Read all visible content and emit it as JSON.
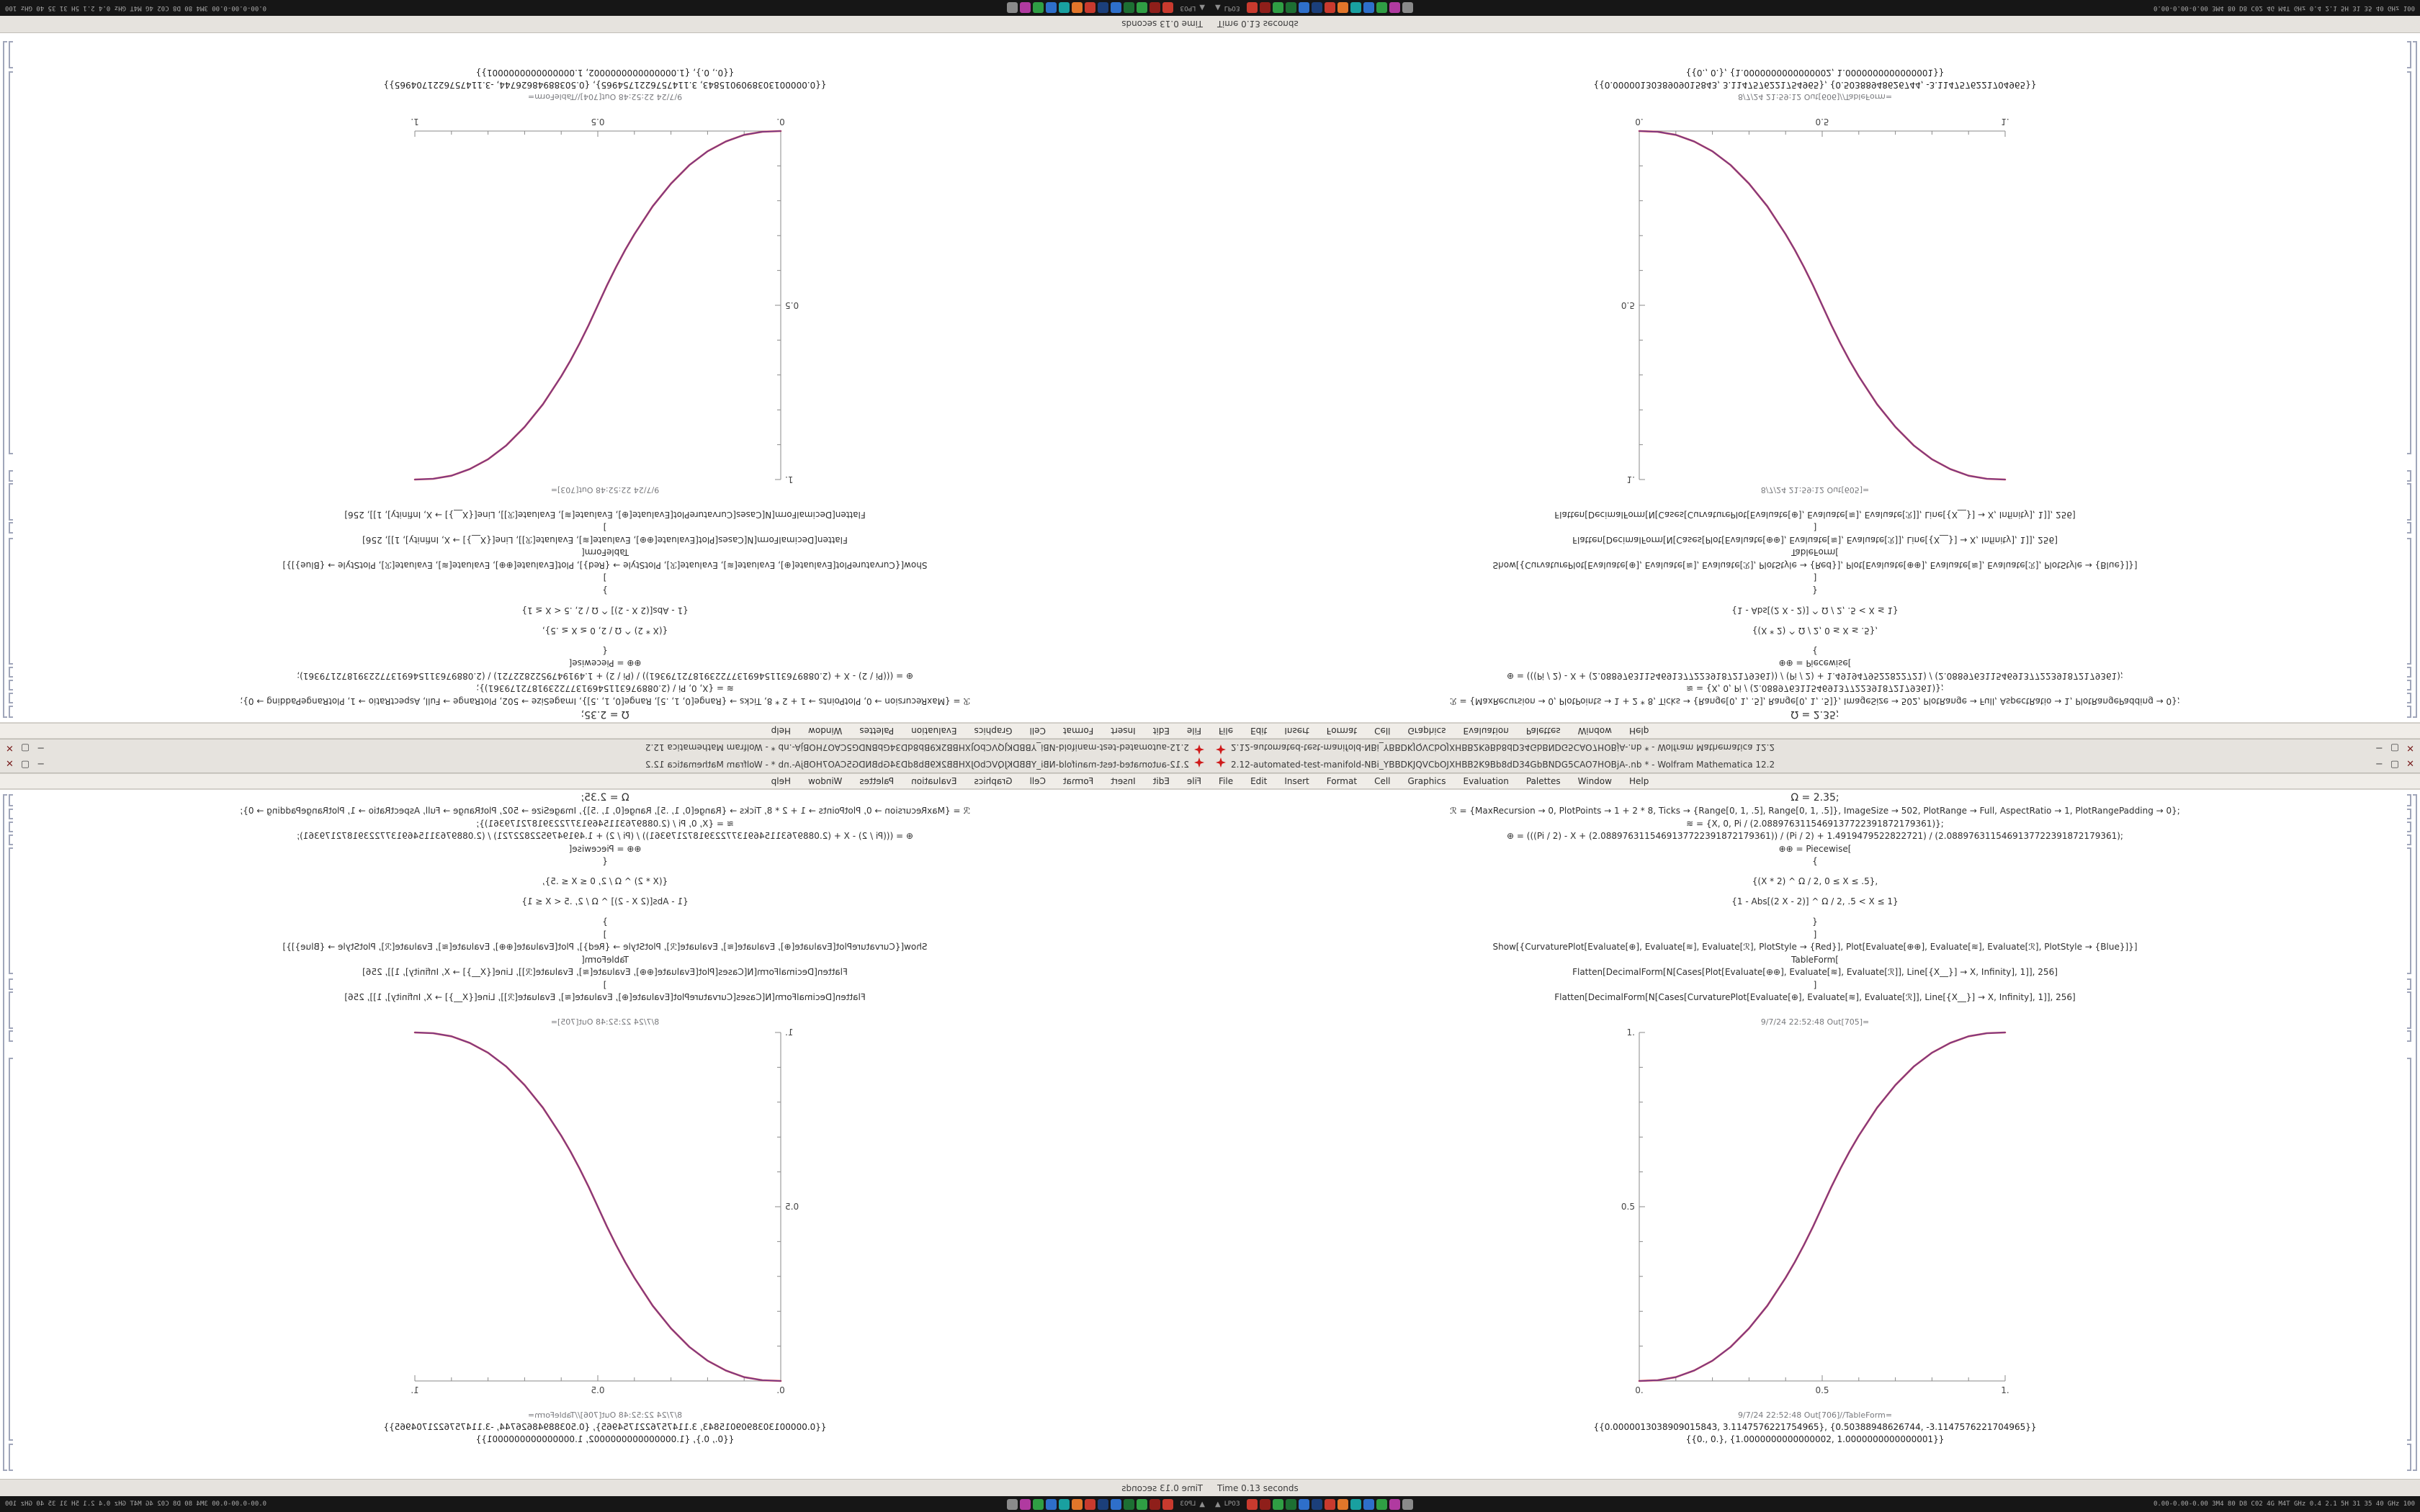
{
  "desktop": {
    "taskbar": {
      "hide_arrow": "▲",
      "left_label": "LP03",
      "right_label": "0.00-0.00-0.00 3M4 80 D8 C02 4G M4T GHz 0.4 2.1 5H 31 35 40 GHz 100",
      "tray_icons": [
        {
          "name": "tray-app-red",
          "color": "#c83a2e"
        },
        {
          "name": "tray-app-dark-red",
          "color": "#8f1f1a"
        },
        {
          "name": "tray-app-green",
          "color": "#2f9e44"
        },
        {
          "name": "tray-app-dark-green",
          "color": "#1d6f33"
        },
        {
          "name": "tray-app-blue",
          "color": "#2e6fca"
        },
        {
          "name": "tray-app-navy",
          "color": "#1b3f7a"
        },
        {
          "name": "tray-app-red-2",
          "color": "#c83a2e"
        },
        {
          "name": "tray-app-orange",
          "color": "#e2762a"
        },
        {
          "name": "tray-app-teal",
          "color": "#19a0a0"
        },
        {
          "name": "tray-app-blue-2",
          "color": "#2e6fca"
        },
        {
          "name": "tray-app-green-2",
          "color": "#2f9e44"
        },
        {
          "name": "tray-app-magenta",
          "color": "#b03aa0"
        },
        {
          "name": "tray-app-gray",
          "color": "#8a8a8a"
        }
      ]
    },
    "window": {
      "app_icon": "mathematica-spikey-icon",
      "app_icon_color": "#cf1a1a",
      "menu_items": [
        "File",
        "Edit",
        "Insert",
        "Format",
        "Cell",
        "Graphics",
        "Evaluation",
        "Palettes",
        "Window",
        "Help"
      ],
      "controls": [
        {
          "name": "minimize-button",
          "glyph": "−"
        },
        {
          "name": "maximize-button",
          "glyph": "▢"
        },
        {
          "name": "close-button",
          "glyph": "✕"
        }
      ]
    }
  },
  "notebook": {
    "input_cells": [
      "Ω = 2.35;",
      "ℛ = {MaxRecursion → 0, PlotPoints → 1 + 2 * 8, Ticks → {Range[0, 1, .5], Range[0, 1, .5]}, ImageSize → 502, PlotRange → Full, AspectRatio → 1, PlotRangePadding → 0};",
      "≋ = {X, 0, Pi / (2.0889763115469137722391872179361)};",
      "⊕ = (((Pi / 2) - X + (2.0889763115469137722391872179361)) / (Pi / 2) + 1.4919479522822721) / (2.0889763115469137722391872179361);",
      "⊕⊕ = Piecewise[",
      "{",
      "{(X * 2) ^ Ω / 2, 0 ≤ X ≤ .5},",
      "{1 - Abs[(2 X - 2)] ^ Ω / 2, .5 < X ≤ 1}",
      "}",
      "]",
      "Show[{CurvaturePlot[Evaluate[⊕], Evaluate[≋], Evaluate[ℛ], PlotStyle → {Red}], Plot[Evaluate[⊕⊕], Evaluate[≋], Evaluate[ℛ], PlotStyle → {Blue}]}]",
      "TableForm[",
      "Flatten[DecimalForm[N[Cases[Plot[Evaluate[⊕⊕], Evaluate[≋], Evaluate[ℛ]], Line[{X__}] → X, Infinity], 1]], 256]",
      "]",
      "Flatten[DecimalForm[N[Cases[CurvaturePlot[Evaluate[⊕], Evaluate[≋], Evaluate[ℛ]], Line[{X__}] → X, Infinity], 1]], 256]"
    ],
    "table_rows": [
      "{{0.0000013038909015843, 3.1147576221754965}, {0.50388948626744, -3.1147576221704965}}",
      "{{0., 0.}, {1.0000000000000002, 1.0000000000000001}}"
    ]
  },
  "quadrants": [
    {
      "id": "top-left",
      "orientation": "rotated-180",
      "title": "2.12-automated-test-manifold-NBi_YBBDKJQVCbOJXHBB2K9Bb8dD34GbBNDG5CAO7HOBjA-.nb * - Wolfram Mathematica 12.2",
      "out_plot_label": "9/7/24 22:52:48 Out[703]=",
      "out_table_label": "9/7/24 22:52:48 Out[704]//TableForm=",
      "status_left": "Time 0.13 seconds"
    },
    {
      "id": "top-right",
      "orientation": "flipped-vertical",
      "title": "2.12-automated-test-manifold-NBi_YBBDKJQVCbOJXHBB2K9Bb8dD34GbBNDG5CAO7HOBjA-.nb * - Wolfram Mathematica 12.2",
      "out_plot_label": "8/7/24 21:59:12 Out[605]=",
      "out_table_label": "8/7/24 21:59:12 Out[606]//TableForm=",
      "status_left": "Time 0.13 seconds"
    },
    {
      "id": "bottom-left",
      "orientation": "flipped-horizontal",
      "title": "2.12-automated-test-manifold-NBi_YBBDKJQVCbOJXHBB2K9Bb8dD34GbBNDG5CAO7HOBjA-.nb * - Wolfram Mathematica 12.2",
      "out_plot_label": "8/7/24 22:52:48 Out[705]=",
      "out_table_label": "8/7/24 22:52:48 Out[706]//TableForm=",
      "status_left": "Time 0.13 seconds"
    },
    {
      "id": "bottom-right",
      "orientation": "normal",
      "title": "2.12-automated-test-manifold-NBi_YBBDKJQVCbOJXHBB2K9Bb8dD34GbBNDG5CAO7HOBjA-.nb * - Wolfram Mathematica 12.2",
      "out_plot_label": "9/7/24 22:52:48 Out[705]=",
      "out_table_label": "9/7/24 22:52:48 Out[706]//TableForm=",
      "status_left": "Time 0.13 seconds"
    }
  ],
  "chart_data": {
    "type": "line",
    "title": "",
    "xlabel": "",
    "ylabel": "",
    "xlim": [
      0,
      1
    ],
    "ylim": [
      0,
      1
    ],
    "grid": false,
    "legend": "none",
    "xticks": [
      0,
      0.5,
      1
    ],
    "yticks": [
      0.5,
      1
    ],
    "xtick_labels": [
      "0.",
      "0.5",
      "1."
    ],
    "ytick_labels": [
      "0.5",
      "1."
    ],
    "minor_tick_step": 0.1,
    "points": [
      [
        0,
        0
      ],
      [
        0.05,
        0.002
      ],
      [
        0.1,
        0.011
      ],
      [
        0.15,
        0.03
      ],
      [
        0.2,
        0.058
      ],
      [
        0.25,
        0.098
      ],
      [
        0.3,
        0.151
      ],
      [
        0.35,
        0.216
      ],
      [
        0.4,
        0.296
      ],
      [
        0.425,
        0.341
      ],
      [
        0.45,
        0.39
      ],
      [
        0.475,
        0.443
      ],
      [
        0.5,
        0.5
      ],
      [
        0.525,
        0.557
      ],
      [
        0.55,
        0.61
      ],
      [
        0.575,
        0.659
      ],
      [
        0.6,
        0.704
      ],
      [
        0.65,
        0.784
      ],
      [
        0.7,
        0.849
      ],
      [
        0.75,
        0.902
      ],
      [
        0.8,
        0.942
      ],
      [
        0.85,
        0.97
      ],
      [
        0.9,
        0.989
      ],
      [
        0.95,
        0.998
      ],
      [
        1,
        1
      ]
    ],
    "series": [
      {
        "name": "CurvaturePlot ⊕ (Red)",
        "color": "#d0343f"
      },
      {
        "name": "Plot ⊕⊕ (Blue)",
        "color": "#2f3bbf"
      }
    ]
  }
}
